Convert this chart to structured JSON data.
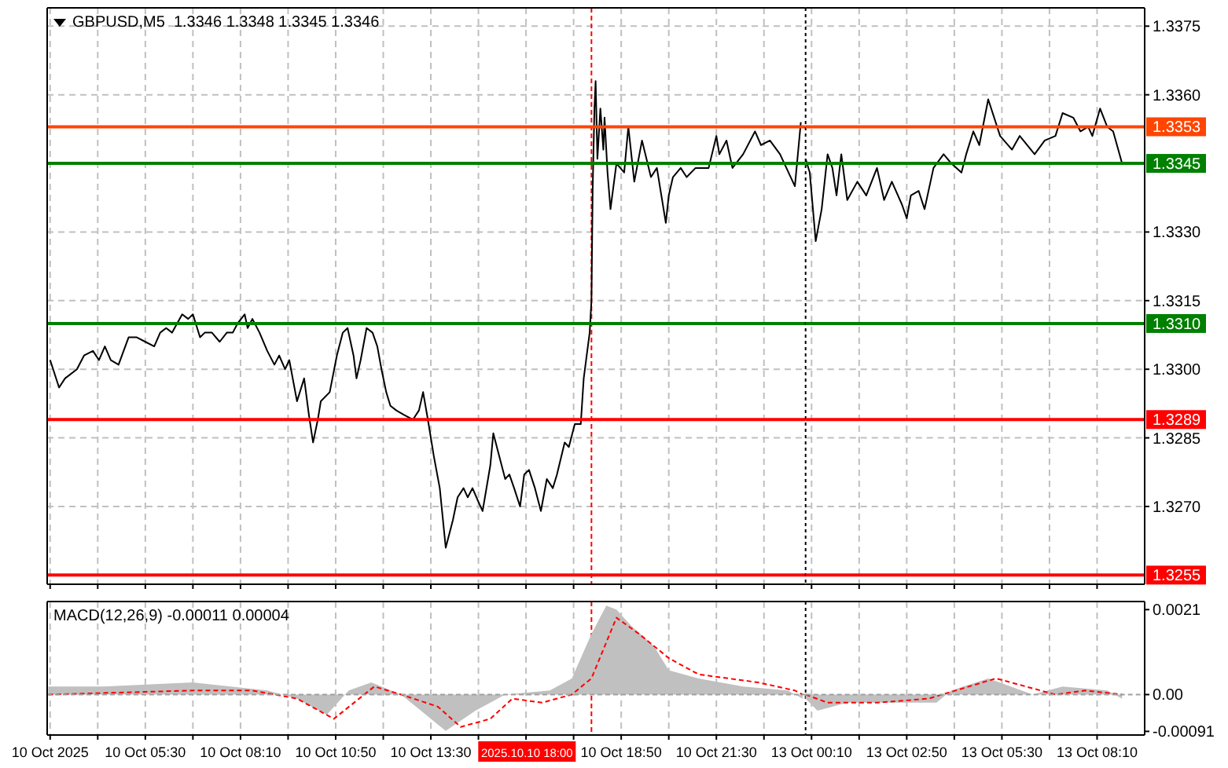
{
  "chart_data": [
    {
      "type": "line",
      "title": "GBPUSD,M5  1.3346 1.3348 1.3345 1.3346",
      "tick_labels": false,
      "grid": true,
      "xlim": [
        "2025-10-10T02:45",
        "2025-10-11T00:00"
      ],
      "ylim": [
        1.3253,
        1.3379
      ],
      "xticks": [
        {
          "value": "2025-10-10T02:50",
          "label": null
        },
        {
          "value": "2025-10-10T04:10",
          "label": null
        },
        {
          "value": "2025-10-10T05:30",
          "label": null
        },
        {
          "value": "2025-10-10T06:50",
          "label": null
        },
        {
          "value": "2025-10-10T08:10",
          "label": null
        },
        {
          "value": "2025-10-10T09:30",
          "label": null
        },
        {
          "value": "2025-10-10T10:50",
          "label": null
        },
        {
          "value": "2025-10-10T12:10",
          "label": null
        },
        {
          "value": "2025-10-10T13:30",
          "label": null
        },
        {
          "value": "2025-10-10T14:50",
          "label": null
        },
        {
          "value": "2025-10-10T16:10",
          "label": null
        },
        {
          "value": "2025-10-10T17:30",
          "label": null
        },
        {
          "value": "2025-10-10T18:50",
          "label": null
        },
        {
          "value": "2025-10-10T20:10",
          "label": null
        },
        {
          "value": "2025-10-10T21:30",
          "label": null
        },
        {
          "value": "2025-10-10T22:50",
          "label": null
        }
      ],
      "yticks": [
        1.3375,
        1.336,
        1.333,
        1.3315,
        1.33,
        1.3285,
        1.327
      ],
      "ref_lines": [
        {
          "axis": "y",
          "value": 1.3353,
          "color": "#ff4500"
        },
        {
          "axis": "y",
          "value": 1.3345,
          "color": "#008000"
        },
        {
          "axis": "y",
          "value": 1.331,
          "color": "#008000"
        },
        {
          "axis": "y",
          "value": 1.3289,
          "color": "#ff0000"
        },
        {
          "axis": "y",
          "value": 1.3255,
          "color": "#ff0000"
        },
        {
          "axis": "x",
          "value": "2025-10-10T18:00",
          "color": "#ff0000",
          "line_style": "dashed"
        }
      ],
      "series": [
        {
          "color": "#000000",
          "x": [
            "2025-10-10T02:50",
            "2025-10-10T03:05",
            "2025-10-10T03:15",
            "2025-10-10T03:35",
            "2025-10-10T03:47",
            "2025-10-10T04:02",
            "2025-10-10T04:12",
            "2025-10-10T04:22",
            "2025-10-10T04:32",
            "2025-10-10T04:45",
            "2025-10-10T05:02",
            "2025-10-10T05:15",
            "2025-10-10T05:30",
            "2025-10-10T05:45",
            "2025-10-10T05:55",
            "2025-10-10T06:05",
            "2025-10-10T06:15",
            "2025-10-10T06:32",
            "2025-10-10T06:42",
            "2025-10-10T06:50",
            "2025-10-10T07:02",
            "2025-10-10T07:10",
            "2025-10-10T07:22",
            "2025-10-10T07:35",
            "2025-10-10T07:47",
            "2025-10-10T07:57",
            "2025-10-10T08:05",
            "2025-10-10T08:17",
            "2025-10-10T08:22",
            "2025-10-10T08:30",
            "2025-10-10T08:42",
            "2025-10-10T08:55",
            "2025-10-10T09:07",
            "2025-10-10T09:15",
            "2025-10-10T09:25",
            "2025-10-10T09:32",
            "2025-10-10T09:45",
            "2025-10-10T09:57",
            "2025-10-10T10:05",
            "2025-10-10T10:12",
            "2025-10-10T10:20",
            "2025-10-10T10:25",
            "2025-10-10T10:40",
            "2025-10-10T10:52",
            "2025-10-10T11:02",
            "2025-10-10T11:10",
            "2025-10-10T11:20",
            "2025-10-10T11:25",
            "2025-10-10T11:32",
            "2025-10-10T11:42",
            "2025-10-10T11:52",
            "2025-10-10T12:00",
            "2025-10-10T12:07",
            "2025-10-10T12:15",
            "2025-10-10T12:22",
            "2025-10-10T12:32",
            "2025-10-10T12:45",
            "2025-10-10T13:00",
            "2025-10-10T13:10",
            "2025-10-10T13:17",
            "2025-10-10T13:25",
            "2025-10-10T13:35",
            "2025-10-10T13:45",
            "2025-10-10T13:55",
            "2025-10-10T14:07",
            "2025-10-10T14:15",
            "2025-10-10T14:25",
            "2025-10-10T14:32",
            "2025-10-10T14:40",
            "2025-10-10T14:50",
            "2025-10-10T14:57",
            "2025-10-10T15:10",
            "2025-10-10T15:15",
            "2025-10-10T15:25",
            "2025-10-10T15:35",
            "2025-10-10T15:42",
            "2025-10-10T15:50",
            "2025-10-10T16:00",
            "2025-10-10T16:07",
            "2025-10-10T16:15",
            "2025-10-10T16:25",
            "2025-10-10T16:35",
            "2025-10-10T16:45",
            "2025-10-10T16:55",
            "2025-10-10T17:02",
            "2025-10-10T17:15",
            "2025-10-10T17:22",
            "2025-10-10T17:32",
            "2025-10-10T17:42",
            "2025-10-10T17:47",
            "2025-10-10T17:52",
            "2025-10-10T17:57",
            "2025-10-10T18:00",
            "2025-10-10T18:02",
            "2025-10-10T18:05",
            "2025-10-10T18:07",
            "2025-10-10T18:10",
            "2025-10-10T18:15",
            "2025-10-10T18:20",
            "2025-10-10T18:22",
            "2025-10-10T18:27",
            "2025-10-10T18:32",
            "2025-10-10T18:42",
            "2025-10-10T18:55",
            "2025-10-10T19:02",
            "2025-10-10T19:12",
            "2025-10-10T19:25",
            "2025-10-10T19:40",
            "2025-10-10T19:50",
            "2025-10-10T20:05",
            "2025-10-10T20:10",
            "2025-10-10T20:17",
            "2025-10-10T20:30",
            "2025-10-10T20:40",
            "2025-10-10T20:55",
            "2025-10-10T21:17",
            "2025-10-10T21:30",
            "2025-10-10T21:35",
            "2025-10-10T21:47",
            "2025-10-10T21:57",
            "2025-10-10T22:15",
            "2025-10-10T22:35",
            "2025-10-10T22:45",
            "2025-10-10T23:00",
            "2025-10-10T23:17",
            "2025-10-10T23:42",
            "2025-10-10T23:52"
          ],
          "values": [
            1.3302,
            1.3296,
            1.3298,
            1.33,
            1.3303,
            1.3304,
            1.3302,
            1.3305,
            1.3302,
            1.3301,
            1.3307,
            1.3307,
            1.3306,
            1.3305,
            1.3308,
            1.3309,
            1.3308,
            1.3312,
            1.3311,
            1.3312,
            1.3307,
            1.3308,
            1.3308,
            1.3306,
            1.3308,
            1.3308,
            1.331,
            1.3312,
            1.3309,
            1.3311,
            1.3308,
            1.3304,
            1.3301,
            1.3303,
            1.33,
            1.3302,
            1.3293,
            1.3298,
            1.329,
            1.3284,
            1.3289,
            1.3293,
            1.3295,
            1.3303,
            1.3308,
            1.3309,
            1.3303,
            1.3298,
            1.3302,
            1.3309,
            1.3308,
            1.3305,
            1.33,
            1.3295,
            1.3292,
            1.3291,
            1.329,
            1.3289,
            1.3291,
            1.3295,
            1.3289,
            1.3281,
            1.3274,
            1.3261,
            1.3267,
            1.3272,
            1.3274,
            1.3272,
            1.3274,
            1.3271,
            1.3269,
            1.3279,
            1.3286,
            1.3281,
            1.3276,
            1.3277,
            1.3274,
            1.327,
            1.3277,
            1.3278,
            1.3274,
            1.3269,
            1.3276,
            1.3274,
            1.3277,
            1.3284,
            1.3283,
            1.3288,
            1.3288,
            1.3298,
            1.3303,
            1.3308,
            1.3315,
            1.3339,
            1.3357,
            1.3363,
            1.3346,
            1.3357,
            1.3348,
            1.3355,
            1.3343,
            1.3335,
            1.3345,
            1.3343,
            1.3353,
            1.3341,
            1.335,
            1.3342,
            1.3344,
            1.3332,
            1.3338,
            1.3342,
            1.3344,
            1.3342,
            1.3344,
            1.3344,
            1.3351,
            1.3347,
            1.335,
            1.3344,
            1.3347,
            1.3352,
            1.3349,
            1.335,
            1.3347,
            1.334,
            1.3354
          ]
        }
      ]
    },
    {
      "type": "line",
      "tick_labels": "y",
      "grid": true,
      "xlim": [
        "2025-10-13T00:00",
        "2025-10-13T09:30"
      ],
      "ylim": [
        1.3253,
        1.3379
      ],
      "xticks": [
        {
          "value": "2025-10-13T00:10",
          "label": null
        },
        {
          "value": "2025-10-13T01:30",
          "label": null
        },
        {
          "value": "2025-10-13T02:50",
          "label": null
        },
        {
          "value": "2025-10-13T04:10",
          "label": null
        },
        {
          "value": "2025-10-13T05:30",
          "label": null
        },
        {
          "value": "2025-10-13T06:50",
          "label": null
        },
        {
          "value": "2025-10-13T08:10",
          "label": null
        }
      ],
      "yticks": [
        {
          "value": 1.3375,
          "label": "1.3375"
        },
        {
          "value": 1.336,
          "label": "1.3360"
        },
        {
          "value": 1.333,
          "label": "1.3330"
        },
        {
          "value": 1.3315,
          "label": "1.3315"
        },
        {
          "value": 1.33,
          "label": "1.3300"
        },
        {
          "value": 1.3285,
          "label": "1.3285"
        },
        {
          "value": 1.327,
          "label": "1.3270"
        }
      ],
      "ref_lines": [
        {
          "axis": "y",
          "value": 1.3353,
          "label": "1.3353",
          "color": "#ff4500"
        },
        {
          "axis": "y",
          "value": 1.3345,
          "label": "1.3345",
          "color": "#008000"
        },
        {
          "axis": "y",
          "value": 1.331,
          "label": "1.3310",
          "color": "#008000"
        },
        {
          "axis": "y",
          "value": 1.3289,
          "label": "1.3289",
          "color": "#ff0000"
        },
        {
          "axis": "y",
          "value": 1.3255,
          "label": "1.3255",
          "color": "#ff0000"
        },
        {
          "axis": "x",
          "value": "2025-10-13T00:00",
          "color": "#000000",
          "line_style": "dotted"
        }
      ],
      "series": [
        {
          "color": "#000000",
          "x": [
            "2025-10-13T00:00",
            "2025-10-13T00:07",
            "2025-10-13T00:17",
            "2025-10-13T00:27",
            "2025-10-13T00:37",
            "2025-10-13T00:45",
            "2025-10-13T00:52",
            "2025-10-13T01:00",
            "2025-10-13T01:10",
            "2025-10-13T01:27",
            "2025-10-13T01:42",
            "2025-10-13T02:00",
            "2025-10-13T02:12",
            "2025-10-13T02:25",
            "2025-10-13T02:42",
            "2025-10-13T02:50",
            "2025-10-13T02:57",
            "2025-10-13T03:10",
            "2025-10-13T03:20",
            "2025-10-13T03:35",
            "2025-10-13T03:52",
            "2025-10-13T04:05",
            "2025-10-13T04:22",
            "2025-10-13T04:30",
            "2025-10-13T04:42",
            "2025-10-13T04:52",
            "2025-10-13T05:07",
            "2025-10-13T05:27",
            "2025-10-13T05:47",
            "2025-10-13T06:00",
            "2025-10-13T06:25",
            "2025-10-13T06:42",
            "2025-10-13T07:00",
            "2025-10-13T07:12",
            "2025-10-13T07:30",
            "2025-10-13T07:42",
            "2025-10-13T07:55",
            "2025-10-13T08:02",
            "2025-10-13T08:15",
            "2025-10-13T08:27",
            "2025-10-13T08:37",
            "2025-10-13T08:52"
          ],
          "values": [
            1.3346,
            1.3343,
            1.3328,
            1.3335,
            1.3347,
            1.3344,
            1.3338,
            1.3347,
            1.3337,
            1.3341,
            1.3338,
            1.3344,
            1.3337,
            1.3341,
            1.3336,
            1.3333,
            1.3338,
            1.3339,
            1.3335,
            1.3344,
            1.3347,
            1.3345,
            1.3343,
            1.3347,
            1.3352,
            1.3349,
            1.3359,
            1.3351,
            1.3348,
            1.3351,
            1.3347,
            1.335,
            1.3351,
            1.3356,
            1.3355,
            1.3352,
            1.3353,
            1.3351,
            1.3357,
            1.3353,
            1.3352,
            1.3345
          ]
        }
      ]
    },
    {
      "type": "area",
      "title": "MACD(12,26,9) -0.00011 0.00004",
      "tick_labels": "x",
      "grid": "x",
      "xlim": [
        "2025-10-10T02:45",
        "2025-10-11T00:00"
      ],
      "ylim": [
        -0.001,
        0.0023
      ],
      "xticks": [
        {
          "value": "2025-10-10T02:50",
          "label": "10 Oct 2025"
        },
        {
          "value": "2025-10-10T04:10",
          "label": null
        },
        {
          "value": "2025-10-10T05:30",
          "label": "10 Oct 05:30"
        },
        {
          "value": "2025-10-10T06:50",
          "label": null
        },
        {
          "value": "2025-10-10T08:10",
          "label": "10 Oct 08:10"
        },
        {
          "value": "2025-10-10T09:30",
          "label": null
        },
        {
          "value": "2025-10-10T10:50",
          "label": "10 Oct 10:50"
        },
        {
          "value": "2025-10-10T12:10",
          "label": null
        },
        {
          "value": "2025-10-10T13:30",
          "label": "10 Oct 13:30"
        },
        {
          "value": "2025-10-10T14:50",
          "label": null
        },
        {
          "value": "2025-10-10T16:10",
          "label": null
        },
        {
          "value": "2025-10-10T17:30",
          "label": null
        },
        {
          "value": "2025-10-10T18:50",
          "label": "10 Oct 18:50"
        },
        {
          "value": "2025-10-10T20:10",
          "label": null
        },
        {
          "value": "2025-10-10T21:30",
          "label": "10 Oct 21:30"
        },
        {
          "value": "2025-10-10T22:50",
          "label": null
        }
      ],
      "ref_lines": [
        {
          "axis": "y",
          "value": 0,
          "color": "#a0a0a0",
          "line_style": "dashed"
        },
        {
          "axis": "x",
          "value": "2025-10-10T18:00",
          "label": "2025.10.10 18:00",
          "color": "#ff0000",
          "line_style": "dashed"
        }
      ],
      "series": [
        {
          "color": "#c0c0c0",
          "x": [
            "2025-10-10T02:47",
            "2025-10-10T04:20",
            "2025-10-10T06:50",
            "2025-10-10T08:55",
            "2025-10-10T09:45",
            "2025-10-10T10:35",
            "2025-10-10T11:12",
            "2025-10-10T11:50",
            "2025-10-10T12:40",
            "2025-10-10T13:55",
            "2025-10-10T14:45",
            "2025-10-10T15:35",
            "2025-10-10T16:50",
            "2025-10-10T17:27",
            "2025-10-10T18:00",
            "2025-10-10T18:25",
            "2025-10-10T18:42",
            "2025-10-10T19:07",
            "2025-10-10T19:45",
            "2025-10-10T20:10",
            "2025-10-10T21:00",
            "2025-10-10T22:15",
            "2025-10-10T23:30",
            "2025-10-10T23:55"
          ],
          "values": [
            0.0002,
            0.0002,
            0.0003,
            0.0001,
            -0.0001,
            -0.0005,
            0.0001,
            0.0003,
            0,
            -0.0009,
            -0.0004,
            0,
            0.0001,
            0.0004,
            0.0015,
            0.0022,
            0.0021,
            0.0017,
            0.0012,
            0.0006,
            0.0004,
            0.0002,
            0.0001,
            -0.0001
          ]
        },
        {
          "type": "line",
          "color": "#ff0000",
          "line_style": "dashed",
          "x": [
            "2025-10-10T02:47",
            "2025-10-10T06:50",
            "2025-10-10T08:30",
            "2025-10-10T09:45",
            "2025-10-10T10:47",
            "2025-10-10T11:55",
            "2025-10-10T12:40",
            "2025-10-10T13:42",
            "2025-10-10T14:20",
            "2025-10-10T15:10",
            "2025-10-10T15:47",
            "2025-10-10T16:37",
            "2025-10-10T17:27",
            "2025-10-10T18:00",
            "2025-10-10T18:42",
            "2025-10-10T19:20",
            "2025-10-10T20:10",
            "2025-10-10T21:00",
            "2025-10-10T22:40",
            "2025-10-10T23:42",
            "2025-10-10T23:55"
          ],
          "values": [
            0,
            0.0001,
            0.0001,
            -0.0001,
            -0.0006,
            0.0002,
            0,
            -0.0003,
            -0.0008,
            -0.0006,
            -0.0001,
            -0.0002,
            0,
            0.0004,
            0.0019,
            0.0015,
            0.0009,
            0.0005,
            0.0003,
            0.0001,
            0
          ]
        }
      ]
    },
    {
      "type": "area",
      "grid": "x",
      "xlim": [
        "2025-10-13T00:00",
        "2025-10-13T09:30"
      ],
      "ylim": [
        -0.001,
        0.0023
      ],
      "xticks": [
        {
          "value": "2025-10-13T00:10",
          "label": "13 Oct 00:10"
        },
        {
          "value": "2025-10-13T01:30",
          "label": null
        },
        {
          "value": "2025-10-13T02:50",
          "label": "13 Oct 02:50"
        },
        {
          "value": "2025-10-13T04:10",
          "label": null
        },
        {
          "value": "2025-10-13T05:30",
          "label": "13 Oct 05:30"
        },
        {
          "value": "2025-10-13T06:50",
          "label": null
        },
        {
          "value": "2025-10-13T08:10",
          "label": "13 Oct 08:10"
        }
      ],
      "yticks": [
        0.0021,
        {
          "value": 0,
          "label": "0.00"
        },
        -0.00091
      ],
      "ref_lines": [
        {
          "axis": "y",
          "value": 0,
          "color": "#a0a0a0",
          "line_style": "dashed"
        },
        {
          "axis": "x",
          "value": "2025-10-13T00:00",
          "color": "#000000",
          "line_style": "dotted"
        }
      ],
      "series": [
        {
          "color": "#c0c0c0",
          "x": [
            "2025-10-13T00:00",
            "2025-10-13T00:20",
            "2025-10-13T01:10",
            "2025-10-13T02:50",
            "2025-10-13T03:40",
            "2025-10-13T04:05",
            "2025-10-13T05:07",
            "2025-10-13T05:45",
            "2025-10-13T06:22",
            "2025-10-13T07:12",
            "2025-10-13T08:27",
            "2025-10-13T08:52"
          ],
          "values": [
            -0.0001,
            -0.0004,
            -0.0002,
            -0.0002,
            -0.0002,
            0.0001,
            0.0004,
            0.0002,
            0,
            0.0002,
            0.0001,
            -0.0001
          ]
        },
        {
          "type": "line",
          "color": "#ff0000",
          "line_style": "dashed",
          "x": [
            "2025-10-13T00:00",
            "2025-10-13T00:37",
            "2025-10-13T02:00",
            "2025-10-13T03:27",
            "2025-10-13T05:20",
            "2025-10-13T07:00",
            "2025-10-13T07:50",
            "2025-10-13T08:52"
          ],
          "values": [
            0,
            -0.0002,
            -0.0002,
            -0.0001,
            0.0004,
            0,
            0.0001,
            0
          ]
        }
      ]
    }
  ]
}
